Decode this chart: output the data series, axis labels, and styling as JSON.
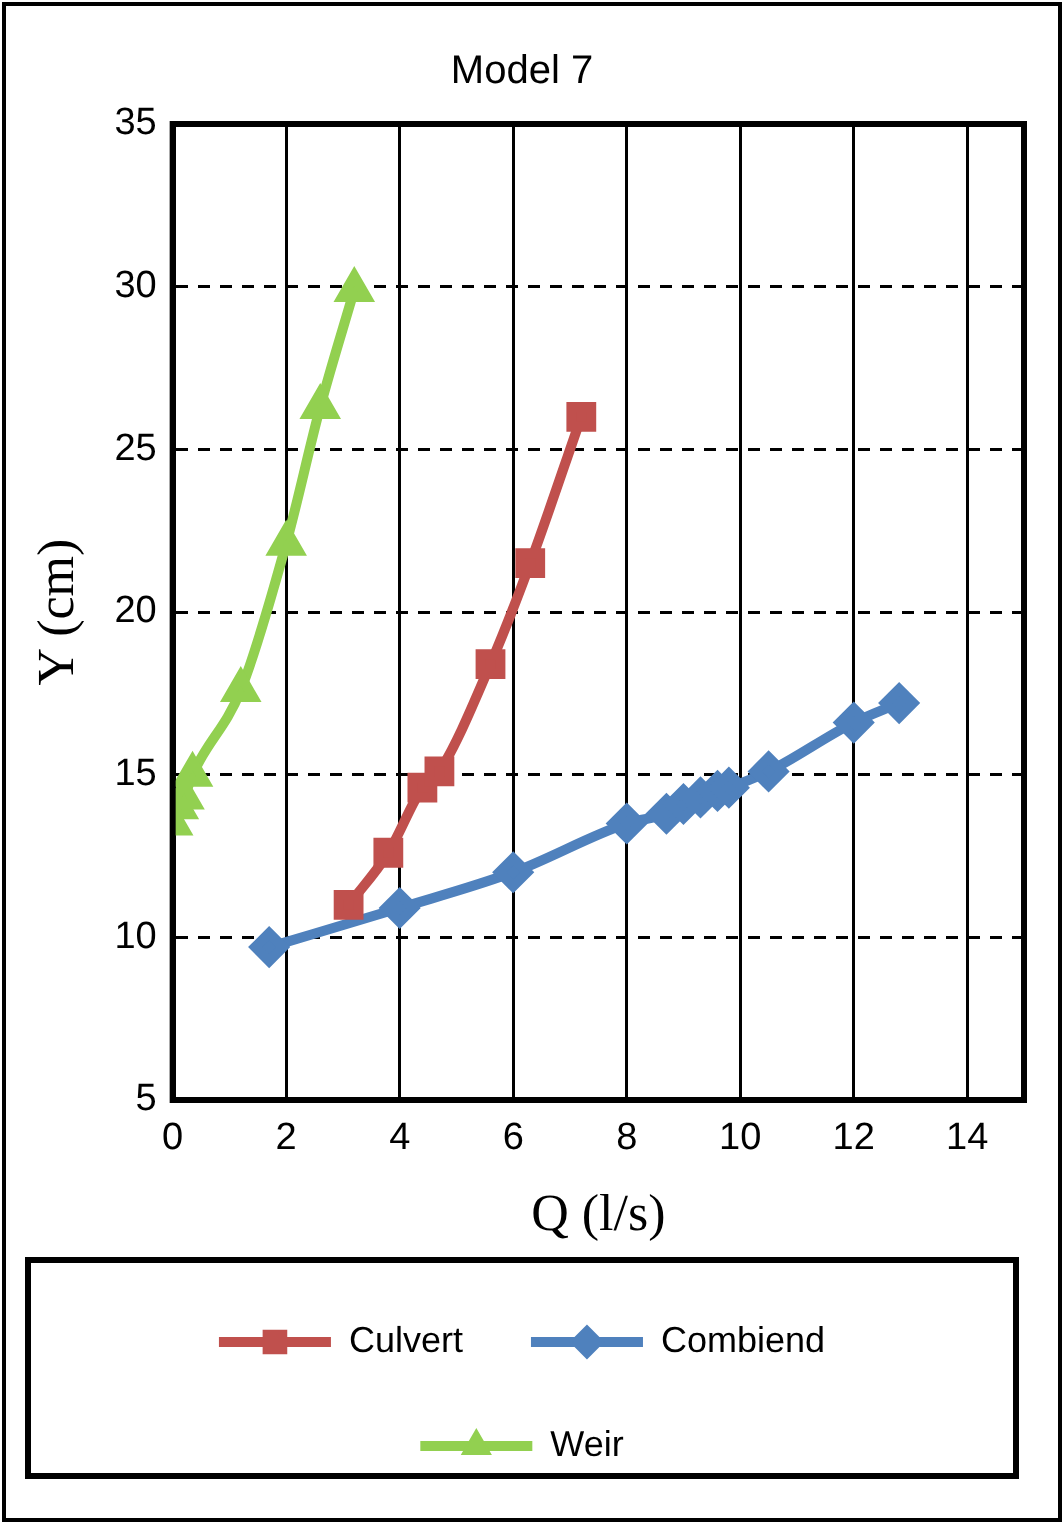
{
  "chart_data": {
    "type": "line",
    "title": "Model 7",
    "xlabel": "Q (l/s)",
    "ylabel": "Y (cm)",
    "xlim": [
      0,
      15
    ],
    "xticks": [
      0,
      2,
      4,
      6,
      8,
      10,
      12,
      14
    ],
    "ylim": [
      5,
      35
    ],
    "yticks": [
      5,
      10,
      15,
      20,
      25,
      30,
      35
    ],
    "grid": true,
    "legend": "bottom",
    "line_style": "solid",
    "series": [
      {
        "name": "Culvert",
        "color": "#c0504d",
        "marker": "square",
        "x": [
          3.1,
          3.8,
          4.4,
          4.7,
          5.6,
          6.3,
          7.2
        ],
        "values": [
          11.0,
          12.6,
          14.6,
          15.1,
          18.4,
          21.5,
          26.0
        ]
      },
      {
        "name": "Combiend",
        "color": "#4f81bd",
        "marker": "diamond",
        "x": [
          1.7,
          4,
          6,
          8,
          8.7,
          9.0,
          9.3,
          9.6,
          9.8,
          10.5,
          12,
          12.8
        ],
        "values": [
          9.7,
          10.9,
          12.0,
          13.5,
          13.8,
          14.1,
          14.3,
          14.5,
          14.6,
          15.1,
          16.6,
          17.2
        ]
      },
      {
        "name": "Weir",
        "color": "#92d050",
        "marker": "triangle",
        "x": [
          0,
          0.1,
          0.2,
          0.35,
          1.2,
          2.0,
          2.6,
          3.2
        ],
        "values": [
          13.5,
          14.0,
          14.3,
          15.0,
          17.6,
          22.1,
          26.3,
          29.9
        ]
      }
    ]
  }
}
